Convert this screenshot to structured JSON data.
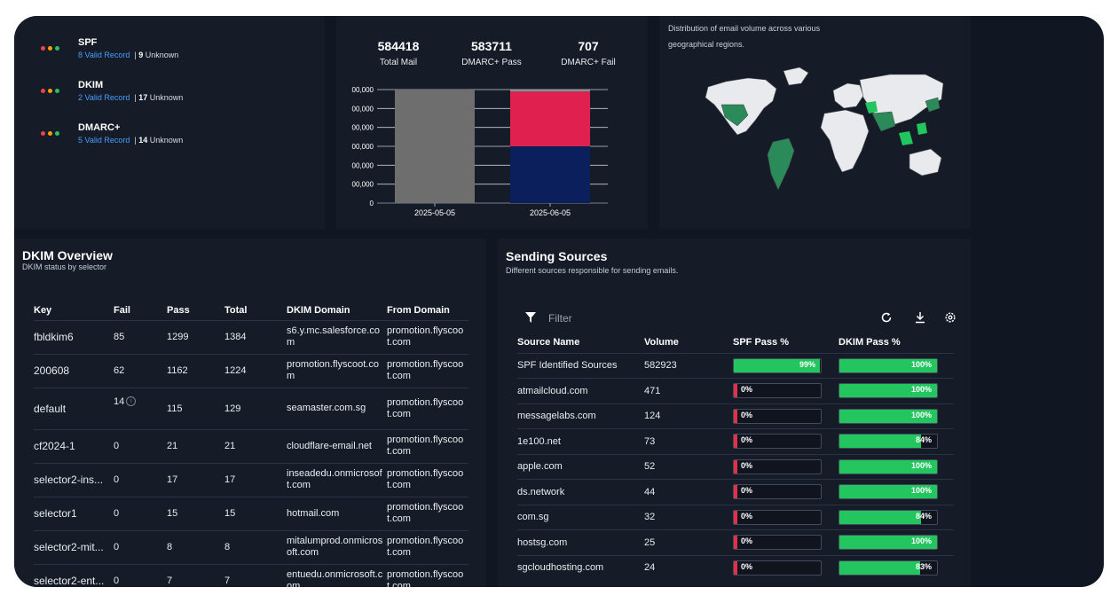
{
  "auth": [
    {
      "name": "SPF",
      "valid": "8 Valid Record",
      "unknown_count": "9",
      "unknown_label": "Unknown"
    },
    {
      "name": "DKIM",
      "valid": "2 Valid Record",
      "unknown_count": "17",
      "unknown_label": "Unknown"
    },
    {
      "name": "DMARC+",
      "valid": "5 Valid Record",
      "unknown_count": "14",
      "unknown_label": "Unknown"
    }
  ],
  "auth_sep": "|",
  "stats": [
    {
      "value": "584418",
      "label": "Total Mail"
    },
    {
      "value": "583711",
      "label": "DMARC+ Pass"
    },
    {
      "value": "707",
      "label": "DMARC+ Fail"
    }
  ],
  "chart_data": {
    "type": "bar",
    "categories": [
      "2025-05-05",
      "2025-06-05"
    ],
    "series": [
      {
        "values": [
          600000,
          0
        ],
        "color": "#6e6e6e"
      },
      {
        "values": [
          0,
          300000
        ],
        "color": "#0b1f5c"
      },
      {
        "values": [
          0,
          290000
        ],
        "color": "#e0204e"
      },
      {
        "values": [
          0,
          10000
        ],
        "color": "#8a8f9c"
      }
    ],
    "y_ticks": [
      "00,000",
      "00,000",
      "00,000",
      "00,000",
      "00,000",
      "00,000",
      "0"
    ],
    "ylim": [
      0,
      600000
    ],
    "grid": true
  },
  "map_description": "Distribution of email volume across various geographical regions.",
  "dkim": {
    "title": "DKIM Overview",
    "subtitle": "DKIM status by selector",
    "columns": [
      "Key",
      "Fail",
      "Pass",
      "Total",
      "DKIM Domain",
      "From Domain"
    ],
    "rows": [
      [
        "fbldkim6",
        "85",
        "1299",
        "1384",
        "s6.y.mc.salesforce.com",
        "promotion.flyscoot.com"
      ],
      [
        "200608",
        "62",
        "1162",
        "1224",
        "promotion.flyscoot.com",
        "promotion.flyscoot.com"
      ],
      [
        "default",
        "14",
        "115",
        "129",
        "seamaster.com.sg",
        "promotion.flyscoot.com"
      ],
      [
        "cf2024-1",
        "0",
        "21",
        "21",
        "cloudflare-email.net",
        "promotion.flyscoot.com"
      ],
      [
        "selector2-ins...",
        "0",
        "17",
        "17",
        "inseadedu.onmicrosoft.com",
        "promotion.flyscoot.com"
      ],
      [
        "selector1",
        "0",
        "15",
        "15",
        "hotmail.com",
        "promotion.flyscoot.com"
      ],
      [
        "selector2-mit...",
        "0",
        "8",
        "8",
        "mitalumprod.onmicrosoft.com",
        "promotion.flyscoot.com"
      ],
      [
        "selector2-ent...",
        "0",
        "7",
        "7",
        "entuedu.onmicrosoft.com",
        "promotion.flyscoot.com"
      ]
    ]
  },
  "sources": {
    "title": "Sending Sources",
    "subtitle": "Different sources responsible for sending emails.",
    "filter_placeholder": "Filter",
    "columns": [
      "Source Name",
      "Volume",
      "SPF Pass %",
      "DKIM Pass %"
    ],
    "rows": [
      {
        "name": "SPF Identified Sources",
        "volume": "582923",
        "spf": 99,
        "spf_label": "99%",
        "dkim": 100,
        "dkim_label": "100%"
      },
      {
        "name": "atmailcloud.com",
        "volume": "471",
        "spf": 0,
        "spf_label": "0%",
        "dkim": 100,
        "dkim_label": "100%"
      },
      {
        "name": "messagelabs.com",
        "volume": "124",
        "spf": 0,
        "spf_label": "0%",
        "dkim": 100,
        "dkim_label": "100%"
      },
      {
        "name": "1e100.net",
        "volume": "73",
        "spf": 0,
        "spf_label": "0%",
        "dkim": 84,
        "dkim_label": "84%"
      },
      {
        "name": "apple.com",
        "volume": "52",
        "spf": 0,
        "spf_label": "0%",
        "dkim": 100,
        "dkim_label": "100%"
      },
      {
        "name": "ds.network",
        "volume": "44",
        "spf": 0,
        "spf_label": "0%",
        "dkim": 100,
        "dkim_label": "100%"
      },
      {
        "name": "com.sg",
        "volume": "32",
        "spf": 0,
        "spf_label": "0%",
        "dkim": 84,
        "dkim_label": "84%"
      },
      {
        "name": "hostsg.com",
        "volume": "25",
        "spf": 0,
        "spf_label": "0%",
        "dkim": 100,
        "dkim_label": "100%"
      },
      {
        "name": "sgcloudhosting.com",
        "volume": "24",
        "spf": 0,
        "spf_label": "0%",
        "dkim": 83,
        "dkim_label": "83%"
      }
    ]
  },
  "icons": {
    "filter": "filter-icon",
    "refresh": "refresh-icon",
    "download": "download-icon",
    "settings": "gear-icon",
    "info": "info-icon"
  },
  "colors": {
    "bg": "#101622",
    "panel": "#151c28",
    "pass": "#22c55e",
    "fail": "#e0304a",
    "link": "#4a9cff"
  }
}
